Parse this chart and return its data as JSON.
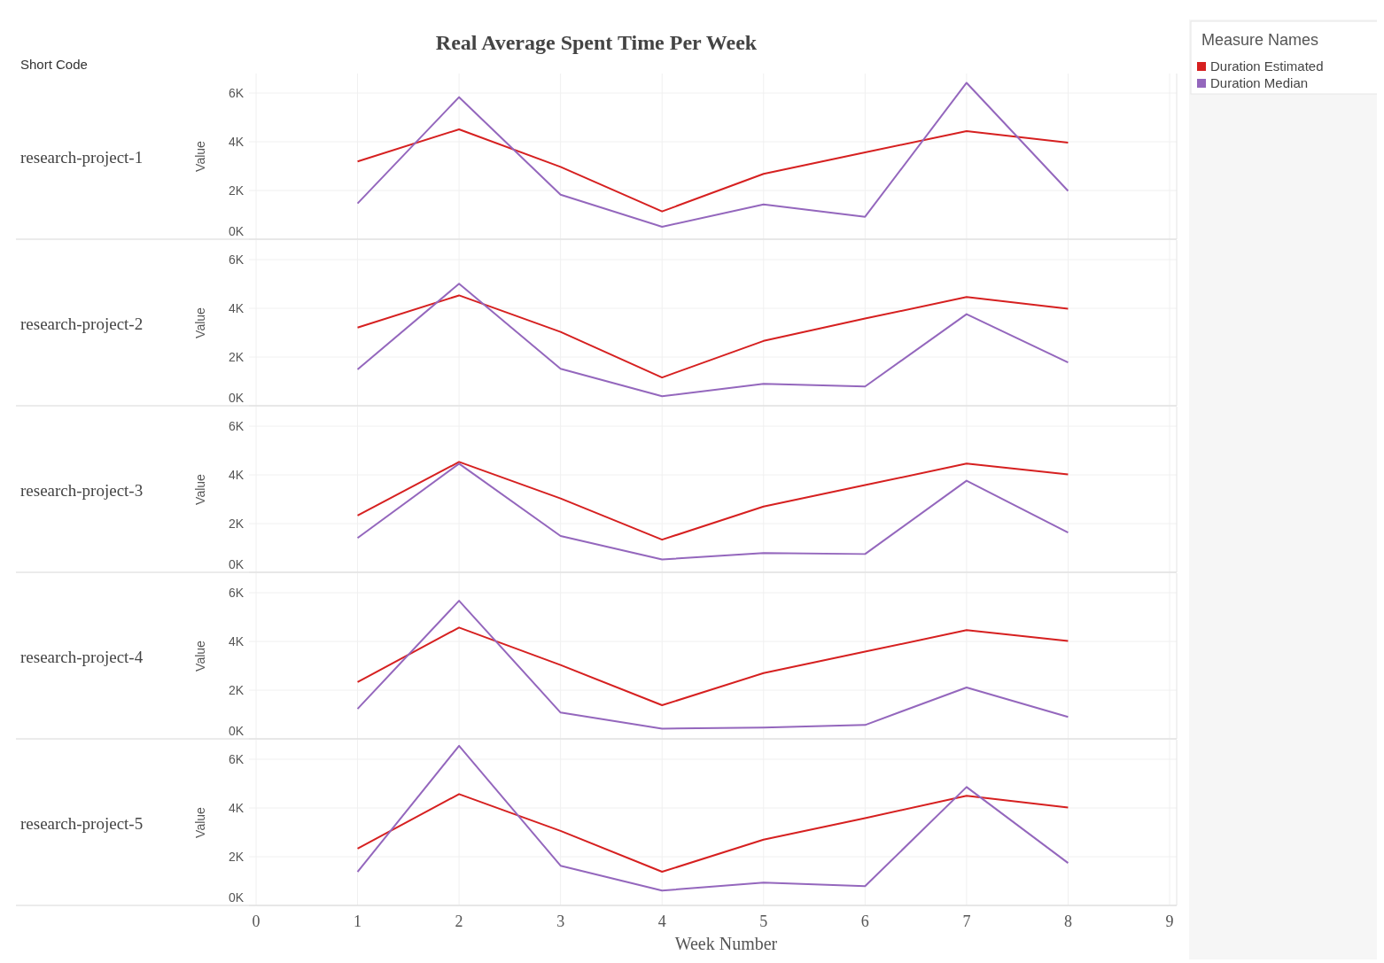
{
  "chart_data": [
    {
      "type": "line",
      "title": "Real Average Spent Time Per Week",
      "subtitle": "research-project-1",
      "annotations": [
        "Short Code"
      ],
      "ylabel": "Value",
      "legend_title": "Measure Names",
      "legend": "top right",
      "grid": true,
      "tick_labels": "y",
      "x": [
        1,
        2,
        3,
        4,
        5,
        6,
        7,
        8
      ],
      "xlim": [
        0,
        9
      ],
      "xticks": [
        0,
        1,
        2,
        3,
        4,
        5,
        6,
        7,
        8,
        9
      ],
      "ylim": [
        0,
        6800
      ],
      "yticks": [
        {
          "value": 0,
          "label": "0K"
        },
        {
          "value": 2000,
          "label": "2K"
        },
        {
          "value": 4000,
          "label": "4K"
        },
        {
          "value": 6000,
          "label": "6K"
        }
      ],
      "series": [
        {
          "name": "Duration Estimated",
          "color": "#d62020",
          "values": [
            3190,
            4510,
            2970,
            1140,
            2680,
            3560,
            4440,
            3960
          ]
        },
        {
          "name": "Duration Median",
          "color": "#9467bd",
          "values": [
            1470,
            5830,
            1830,
            510,
            1430,
            920,
            6420,
            1980
          ]
        }
      ]
    },
    {
      "type": "line",
      "subtitle": "research-project-2",
      "ylabel": "Value",
      "grid": true,
      "tick_labels": "y",
      "x": [
        1,
        2,
        3,
        4,
        5,
        6,
        7,
        8
      ],
      "xlim": [
        0,
        9
      ],
      "xticks": [
        0,
        1,
        2,
        3,
        4,
        5,
        6,
        7,
        8,
        9
      ],
      "ylim": [
        0,
        6800
      ],
      "yticks": [
        {
          "value": 0,
          "label": "0K"
        },
        {
          "value": 2000,
          "label": "2K"
        },
        {
          "value": 4000,
          "label": "4K"
        },
        {
          "value": 6000,
          "label": "6K"
        }
      ],
      "series": [
        {
          "color": "#d62020",
          "values": [
            3210,
            4530,
            3030,
            1160,
            2660,
            3580,
            4460,
            3980
          ]
        },
        {
          "color": "#9467bd",
          "values": [
            1490,
            5010,
            1520,
            390,
            900,
            790,
            3760,
            1780
          ]
        }
      ]
    },
    {
      "type": "line",
      "subtitle": "research-project-3",
      "ylabel": "Value",
      "grid": true,
      "tick_labels": "y",
      "x": [
        1,
        2,
        3,
        4,
        5,
        6,
        7,
        8
      ],
      "xlim": [
        0,
        9
      ],
      "xticks": [
        0,
        1,
        2,
        3,
        4,
        5,
        6,
        7,
        8,
        9
      ],
      "ylim": [
        0,
        6800
      ],
      "yticks": [
        {
          "value": 0,
          "label": "0K"
        },
        {
          "value": 2000,
          "label": "2K"
        },
        {
          "value": 4000,
          "label": "4K"
        },
        {
          "value": 6000,
          "label": "6K"
        }
      ],
      "series": [
        {
          "color": "#d62020",
          "values": [
            2330,
            4530,
            3030,
            1340,
            2700,
            3580,
            4460,
            4020
          ]
        },
        {
          "color": "#9467bd",
          "values": [
            1410,
            4460,
            1490,
            530,
            790,
            750,
            3760,
            1630
          ]
        }
      ]
    },
    {
      "type": "line",
      "subtitle": "research-project-4",
      "ylabel": "Value",
      "grid": true,
      "tick_labels": "y",
      "x": [
        1,
        2,
        3,
        4,
        5,
        6,
        7,
        8
      ],
      "xlim": [
        0,
        9
      ],
      "xticks": [
        0,
        1,
        2,
        3,
        4,
        5,
        6,
        7,
        8,
        9
      ],
      "ylim": [
        0,
        6800
      ],
      "yticks": [
        {
          "value": 0,
          "label": "0K"
        },
        {
          "value": 2000,
          "label": "2K"
        },
        {
          "value": 4000,
          "label": "4K"
        },
        {
          "value": 6000,
          "label": "6K"
        }
      ],
      "series": [
        {
          "color": "#d62020",
          "values": [
            2330,
            4570,
            3030,
            1380,
            2700,
            3580,
            4460,
            4020
          ]
        },
        {
          "color": "#9467bd",
          "values": [
            1230,
            5670,
            1080,
            420,
            460,
            570,
            2110,
            900
          ]
        }
      ]
    },
    {
      "type": "line",
      "subtitle": "research-project-5",
      "ylabel": "Value",
      "xlabel": "Week Number",
      "grid": true,
      "x": [
        1,
        2,
        3,
        4,
        5,
        6,
        7,
        8
      ],
      "xlim": [
        0,
        9
      ],
      "xticks": [
        0,
        1,
        2,
        3,
        4,
        5,
        6,
        7,
        8,
        9
      ],
      "ylim": [
        0,
        6800
      ],
      "yticks": [
        {
          "value": 0,
          "label": "0K"
        },
        {
          "value": 2000,
          "label": "2K"
        },
        {
          "value": 4000,
          "label": "4K"
        },
        {
          "value": 6000,
          "label": "6K"
        }
      ],
      "series": [
        {
          "color": "#d62020",
          "values": [
            2330,
            4570,
            3060,
            1380,
            2700,
            3580,
            4500,
            4020
          ]
        },
        {
          "color": "#9467bd",
          "values": [
            1380,
            6550,
            1630,
            610,
            940,
            790,
            4860,
            1740
          ]
        }
      ]
    }
  ]
}
